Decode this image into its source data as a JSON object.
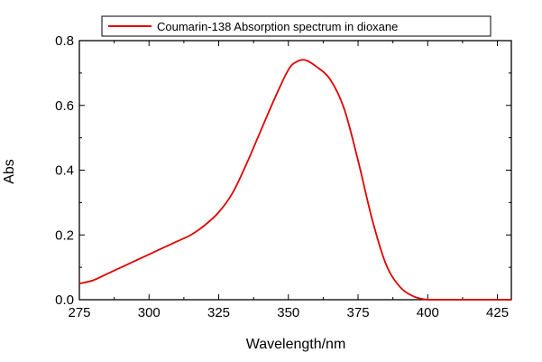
{
  "chart_data": {
    "type": "line",
    "xlabel": "Wavelength/nm",
    "ylabel": "Abs",
    "xlim": [
      275,
      430
    ],
    "ylim": [
      0,
      0.8
    ],
    "xticks": [
      275,
      300,
      325,
      350,
      375,
      400,
      425
    ],
    "yticks": [
      0.0,
      0.2,
      0.4,
      0.6,
      0.8
    ],
    "xtick_labels": [
      "275",
      "300",
      "325",
      "350",
      "375",
      "400",
      "425"
    ],
    "ytick_labels": [
      "0.0",
      "0.2",
      "0.4",
      "0.6",
      "0.8"
    ],
    "grid": false,
    "legend": {
      "placement": "top-right",
      "entries": [
        "Coumarin-138 Absorption spectrum in dioxane"
      ]
    },
    "series": [
      {
        "name": "Coumarin-138 Absorption spectrum in dioxane",
        "color": "#e00000",
        "x": [
          275,
          280,
          285,
          290,
          295,
          300,
          305,
          310,
          315,
          320,
          325,
          330,
          335,
          340,
          345,
          350,
          353,
          356,
          360,
          365,
          370,
          375,
          380,
          385,
          390,
          395,
          400,
          405,
          410,
          415,
          420,
          425,
          430
        ],
        "y": [
          0.05,
          0.06,
          0.08,
          0.1,
          0.12,
          0.14,
          0.16,
          0.18,
          0.2,
          0.23,
          0.27,
          0.33,
          0.42,
          0.52,
          0.62,
          0.71,
          0.735,
          0.74,
          0.72,
          0.68,
          0.59,
          0.43,
          0.25,
          0.11,
          0.04,
          0.01,
          0.0,
          0.0,
          0.0,
          0.0,
          0.0,
          0.0,
          0.0
        ]
      }
    ]
  }
}
